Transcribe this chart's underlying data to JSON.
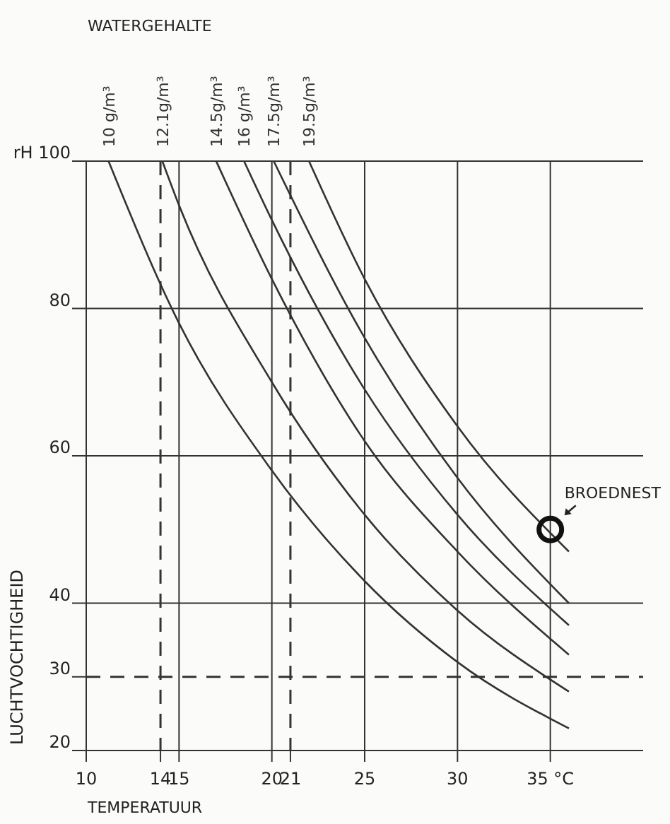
{
  "chart_data": {
    "type": "line",
    "legend_title": "WATERGEHALTE",
    "xlabel": "TEMPERATUUR",
    "ylabel": "LUCHTVOCHTIGHEID",
    "xlim": [
      10,
      40
    ],
    "ylim": [
      20,
      100
    ],
    "xticks": [
      10,
      15,
      20,
      25,
      30,
      {
        "value": 35,
        "label": "35 °C"
      }
    ],
    "yticks": [
      20,
      40,
      60,
      80,
      {
        "value": 100,
        "label": "rH 100"
      }
    ],
    "grid": true,
    "legend": "top",
    "line_style": "solid",
    "marker": "none",
    "ref_lines": [
      {
        "axis": "x",
        "value": 14,
        "label": "14",
        "line_style": "dashed",
        "color": "#333333"
      },
      {
        "axis": "x",
        "value": 21,
        "label": "21",
        "line_style": "dashed",
        "color": "#333333"
      },
      {
        "axis": "y",
        "value": 30,
        "label": "30",
        "line_style": "dashed",
        "color": "#333333"
      }
    ],
    "series": [
      {
        "name": "10 g/m³",
        "color": "#333333",
        "x": [
          11.2,
          15,
          20,
          25,
          30,
          36
        ],
        "values": [
          100,
          78,
          58,
          43,
          32,
          23
        ]
      },
      {
        "name": "12.1g/m³",
        "color": "#333333",
        "x": [
          14.1,
          15,
          20,
          25,
          30,
          36
        ],
        "values": [
          100,
          94,
          70,
          52,
          39,
          28
        ]
      },
      {
        "name": "14.5g/m³",
        "color": "#333333",
        "x": [
          17,
          20,
          25,
          30,
          36
        ],
        "values": [
          100,
          84,
          62,
          47,
          33
        ]
      },
      {
        "name": "16 g/m³",
        "color": "#333333",
        "x": [
          18.5,
          20,
          25,
          30,
          36
        ],
        "values": [
          100,
          92,
          69,
          52,
          37
        ]
      },
      {
        "name": "17.5g/m³",
        "color": "#333333",
        "x": [
          20.1,
          25,
          30,
          36
        ],
        "values": [
          100,
          76,
          57,
          40
        ]
      },
      {
        "name": "19.5g/m³",
        "color": "#333333",
        "x": [
          22,
          25,
          30,
          36
        ],
        "values": [
          100,
          84,
          64,
          47
        ]
      },
      {
        "name": "BROEDNEST",
        "type": "scatter",
        "marker": "circle",
        "color": "#111111",
        "x": [
          35
        ],
        "values": [
          50
        ]
      }
    ]
  }
}
